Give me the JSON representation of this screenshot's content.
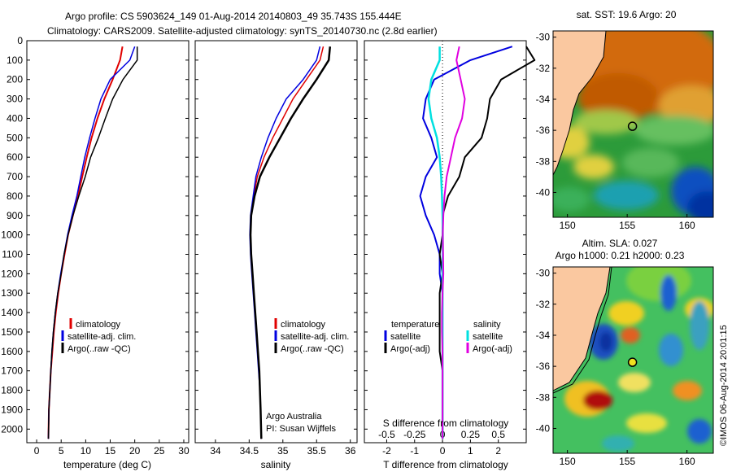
{
  "header": {
    "line1": "Argo profile: CS 5903624_149 01-Aug-2014 20140803_49 35.743S 155.444E",
    "line2": "Climatology: CARS2009. Satellite-adjusted climatology: synTS_20140730.nc (2.8d earlier)"
  },
  "colors": {
    "climatology": "#e00000",
    "satellite": "#0000e0",
    "argo": "#000000",
    "salinity_satellite": "#00e0e0",
    "salinity_argo": "#e000e0"
  },
  "panels": {
    "temperature": {
      "xlabel": "temperature (deg C)",
      "legend": [
        "climatology",
        "satellite-adj. clim.",
        "Argo(..raw -QC)"
      ]
    },
    "salinity": {
      "xlabel": "salinity",
      "legend": [
        "climatology",
        "satellite-adj. clim.",
        "Argo(..raw -QC)"
      ],
      "credit1": "Argo Australia",
      "credit2": "PI: Susan Wijffels"
    },
    "difference": {
      "xlabel": "T difference from climatology",
      "xlabel_top": "S difference from climatology",
      "legend_head_t": "temperature",
      "legend_head_s": "salinity",
      "legend_t": [
        "satellite",
        "Argo(-adj)"
      ],
      "legend_s": [
        "satellite",
        "Argo(-adj)"
      ]
    },
    "sst_map": {
      "title": "sat. SST: 19.6 Argo: 20"
    },
    "sla_map": {
      "title1": "Altim. SLA: 0.027",
      "title2": "Argo h1000: 0.21 h2000: 0.23"
    }
  },
  "side_label": "©IMOS 06-Aug-2014 20:01:15",
  "chart_data": [
    {
      "type": "line",
      "xlabel": "temperature (deg C)",
      "ylabel": "",
      "xlim": [
        -2,
        31
      ],
      "ylim": [
        2070,
        0
      ],
      "xticks": [
        "0",
        "5",
        "10",
        "15",
        "20",
        "25",
        "30"
      ],
      "yticks": [
        "0",
        "100",
        "200",
        "300",
        "400",
        "500",
        "600",
        "700",
        "800",
        "900",
        "1000",
        "1100",
        "1200",
        "1300",
        "1400",
        "1500",
        "1600",
        "1700",
        "1800",
        "1900",
        "2000"
      ],
      "series": [
        {
          "name": "climatology",
          "x": [
            17.5,
            17.0,
            15.5,
            13.8,
            12.4,
            11.2,
            10.2,
            9.3,
            8.4,
            7.4,
            6.4,
            5.7,
            5.0,
            4.4,
            3.9,
            3.5,
            3.2,
            2.9,
            2.7,
            2.5,
            2.4
          ],
          "y": [
            30,
            100,
            200,
            300,
            400,
            500,
            600,
            700,
            800,
            900,
            1000,
            1100,
            1200,
            1300,
            1400,
            1500,
            1600,
            1700,
            1800,
            1900,
            2050
          ]
        },
        {
          "name": "satellite-adj. clim.",
          "x": [
            20.0,
            19.0,
            15.0,
            13.1,
            11.9,
            10.8,
            9.8,
            9.0,
            8.2,
            7.2,
            6.3,
            5.6,
            4.9,
            4.3,
            3.8,
            3.4,
            3.1,
            2.9,
            2.7,
            2.5,
            2.4
          ],
          "y": [
            30,
            100,
            200,
            300,
            400,
            500,
            600,
            700,
            800,
            900,
            1000,
            1100,
            1200,
            1300,
            1400,
            1500,
            1600,
            1700,
            1800,
            1900,
            2050
          ]
        },
        {
          "name": "Argo(..raw -QC)",
          "x": [
            20.5,
            20.5,
            17.6,
            15.5,
            14.0,
            12.6,
            11.0,
            9.9,
            8.6,
            7.4,
            6.4,
            5.6,
            5.0,
            4.3,
            3.8,
            3.4,
            3.1,
            2.9,
            2.7,
            2.5,
            2.4
          ],
          "y": [
            30,
            100,
            200,
            300,
            400,
            500,
            600,
            700,
            800,
            900,
            1000,
            1100,
            1200,
            1300,
            1400,
            1500,
            1600,
            1700,
            1800,
            1900,
            2050
          ]
        }
      ]
    },
    {
      "type": "line",
      "xlabel": "salinity",
      "xlim": [
        33.7,
        36.1
      ],
      "ylim": [
        2070,
        0
      ],
      "xticks": [
        "34",
        "34.5",
        "35",
        "35.5",
        "36"
      ],
      "series": [
        {
          "name": "climatology",
          "x": [
            35.6,
            35.55,
            35.35,
            35.15,
            35.0,
            34.85,
            34.72,
            34.62,
            34.57,
            34.53,
            34.52,
            34.53,
            34.55,
            34.57,
            34.59,
            34.61,
            34.63,
            34.65,
            34.66,
            34.67,
            34.68
          ],
          "y": [
            30,
            100,
            200,
            300,
            400,
            500,
            600,
            700,
            800,
            900,
            1000,
            1100,
            1200,
            1300,
            1400,
            1500,
            1600,
            1700,
            1800,
            1900,
            2050
          ]
        },
        {
          "name": "satellite-adj. clim.",
          "x": [
            35.55,
            35.5,
            35.3,
            35.05,
            34.9,
            34.78,
            34.68,
            34.6,
            34.56,
            34.52,
            34.51,
            34.52,
            34.54,
            34.56,
            34.58,
            34.6,
            34.62,
            34.64,
            34.66,
            34.67,
            34.68
          ],
          "y": [
            30,
            100,
            200,
            300,
            400,
            500,
            600,
            700,
            800,
            900,
            1000,
            1100,
            1200,
            1300,
            1400,
            1500,
            1600,
            1700,
            1800,
            1900,
            2050
          ]
        },
        {
          "name": "Argo(..raw -QC)",
          "x": [
            35.7,
            35.68,
            35.5,
            35.3,
            35.12,
            34.96,
            34.8,
            34.66,
            34.58,
            34.53,
            34.52,
            34.53,
            34.55,
            34.57,
            34.59,
            34.61,
            34.63,
            34.65,
            34.66,
            34.67,
            34.68
          ],
          "y": [
            30,
            100,
            200,
            300,
            400,
            500,
            600,
            700,
            800,
            900,
            1000,
            1100,
            1200,
            1300,
            1400,
            1500,
            1600,
            1700,
            1800,
            1900,
            2050
          ]
        }
      ]
    },
    {
      "type": "line",
      "xlabel": "T difference from climatology",
      "xlim": [
        -2.8,
        3.0
      ],
      "ylim": [
        2070,
        0
      ],
      "xticks": [
        "-2",
        "-1",
        "0",
        "1",
        "2"
      ],
      "xticks_top": [
        "-0.5",
        "-0.25",
        "0",
        "0.25",
        "0.5"
      ],
      "series": [
        {
          "name": "temperature satellite",
          "x": [
            2.5,
            1.0,
            -0.3,
            -0.6,
            -0.7,
            -0.4,
            -0.2,
            -0.6,
            -0.8,
            -0.6,
            -0.3,
            -0.1,
            -0.1,
            0.0,
            0.0,
            0.0,
            0.0,
            0.0,
            0.0,
            0.0,
            0.0
          ],
          "y": [
            30,
            100,
            200,
            300,
            400,
            500,
            600,
            700,
            800,
            900,
            1000,
            1100,
            1200,
            1300,
            1400,
            1500,
            1600,
            1700,
            1800,
            1900,
            2050
          ]
        },
        {
          "name": "temperature Argo(-adj)",
          "x": [
            3.0,
            3.3,
            2.1,
            1.7,
            1.6,
            1.4,
            0.8,
            0.6,
            0.2,
            0.0,
            0.0,
            -0.1,
            0.0,
            -0.1,
            -0.1,
            -0.1,
            -0.1,
            0.0,
            0.0,
            0.0,
            0.0
          ],
          "y": [
            30,
            100,
            200,
            300,
            400,
            500,
            600,
            700,
            800,
            900,
            1000,
            1100,
            1200,
            1300,
            1400,
            1500,
            1600,
            1700,
            1800,
            1900,
            2050
          ]
        },
        {
          "name": "salinity satellite",
          "x": [
            -0.1,
            -0.1,
            -0.4,
            -0.5,
            -0.4,
            -0.2,
            -0.1,
            -0.05,
            -0.02,
            0.0,
            0.01,
            0.01,
            0.0,
            0.0,
            0.0,
            0.0,
            0.0,
            0.0,
            0.0,
            0.0,
            0.0
          ],
          "y": [
            30,
            100,
            200,
            300,
            400,
            500,
            600,
            700,
            800,
            900,
            1000,
            1100,
            1200,
            1300,
            1400,
            1500,
            1600,
            1700,
            1800,
            1900,
            2050
          ]
        },
        {
          "name": "salinity Argo(-adj)",
          "x": [
            0.6,
            0.5,
            0.65,
            0.8,
            0.7,
            0.45,
            0.3,
            0.15,
            0.07,
            0.03,
            0.01,
            0.02,
            0.03,
            0.0,
            -0.02,
            -0.02,
            0.0,
            0.0,
            0.0,
            0.0,
            0.0
          ],
          "y": [
            30,
            100,
            200,
            300,
            400,
            500,
            600,
            700,
            800,
            900,
            1000,
            1100,
            1200,
            1300,
            1400,
            1500,
            1600,
            1700,
            1800,
            1900,
            2050
          ]
        }
      ]
    },
    {
      "type": "heatmap",
      "title": "sat. SST: 19.6 Argo: 20",
      "xticks": [
        "150",
        "155",
        "160"
      ],
      "yticks": [
        "-30",
        "-32",
        "-34",
        "-36",
        "-38",
        "-40"
      ],
      "marker": {
        "lon": 155.44,
        "lat": -35.74
      }
    },
    {
      "type": "heatmap",
      "title": "Altim. SLA: 0.027",
      "xticks": [
        "150",
        "155",
        "160"
      ],
      "yticks": [
        "-30",
        "-32",
        "-34",
        "-36",
        "-38",
        "-40"
      ],
      "marker": {
        "lon": 155.44,
        "lat": -35.74
      }
    }
  ]
}
